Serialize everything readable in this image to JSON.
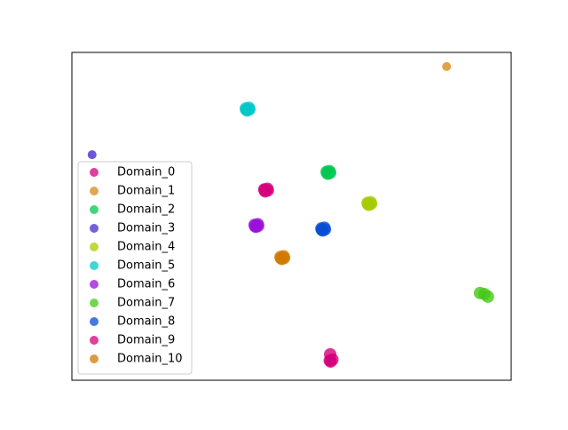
{
  "chart_data": {
    "type": "scatter",
    "xlim": [
      0,
      100
    ],
    "ylim": [
      0,
      100
    ],
    "legend": "lower left",
    "series": [
      {
        "name": "Domain_0",
        "color": "#d4007c",
        "x": [
          43.8,
          44.6,
          44.0,
          44.5,
          43.9
        ],
        "y": [
          58.2,
          57.9,
          57.6,
          58.4,
          58.0
        ]
      },
      {
        "name": "Domain_1",
        "color": "#d88a1c",
        "x": [
          85.3
        ],
        "y": [
          95.7
        ]
      },
      {
        "name": "Domain_2",
        "color": "#00c853",
        "x": [
          58.0,
          58.8,
          58.3,
          58.6,
          58.1
        ],
        "y": [
          63.6,
          63.3,
          63.0,
          63.8,
          63.2
        ]
      },
      {
        "name": "Domain_3",
        "color": "#4a2ad0",
        "x": [
          4.6
        ],
        "y": [
          68.8
        ]
      },
      {
        "name": "Domain_4",
        "color": "#a6cc00",
        "x": [
          67.3,
          68.1,
          67.6,
          68.0,
          67.4
        ],
        "y": [
          54.1,
          53.8,
          53.5,
          54.3,
          53.7
        ]
      },
      {
        "name": "Domain_5",
        "color": "#00c8c8",
        "x": [
          39.6,
          40.4,
          39.9,
          40.3,
          39.7
        ],
        "y": [
          82.9,
          82.6,
          82.3,
          83.1,
          82.5
        ]
      },
      {
        "name": "Domain_6",
        "color": "#9a10d8",
        "x": [
          41.6,
          42.4,
          41.9,
          42.3,
          41.7
        ],
        "y": [
          47.4,
          47.1,
          46.8,
          47.6,
          47.0
        ]
      },
      {
        "name": "Domain_7",
        "color": "#44c818",
        "x": [
          92.9,
          93.9,
          94.7
        ],
        "y": [
          26.6,
          26.3,
          25.5
        ]
      },
      {
        "name": "Domain_8",
        "color": "#0a4ed4",
        "x": [
          56.8,
          57.6,
          57.1,
          57.5,
          56.9
        ],
        "y": [
          46.3,
          46.0,
          45.7,
          46.5,
          45.9
        ]
      },
      {
        "name": "Domain_9",
        "color": "#d4007c",
        "x": [
          58.7,
          59.3,
          58.9,
          58.8
        ],
        "y": [
          6.0,
          6.3,
          5.7,
          7.9
        ]
      },
      {
        "name": "Domain_10",
        "color": "#d07a00",
        "x": [
          47.5,
          48.3,
          47.8,
          48.2,
          47.6
        ],
        "y": [
          37.6,
          37.3,
          37.0,
          37.8,
          37.2
        ]
      }
    ]
  }
}
